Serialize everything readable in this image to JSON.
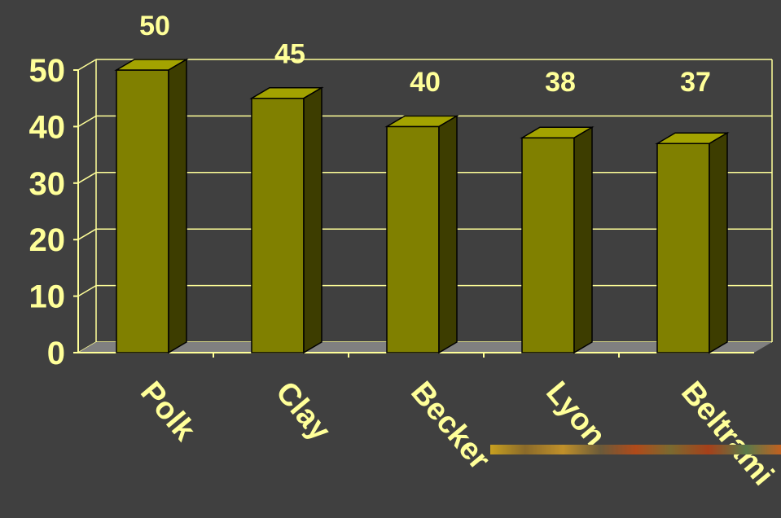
{
  "chart_data": {
    "type": "bar",
    "categories": [
      "Polk",
      "Clay",
      "Becker",
      "Lyon",
      "Beltrami"
    ],
    "values": [
      50,
      45,
      40,
      38,
      37
    ],
    "title": "",
    "xlabel": "",
    "ylabel": "",
    "ylim": [
      0,
      50
    ],
    "yticks": [
      0,
      10,
      20,
      30,
      40,
      50
    ],
    "grid": true,
    "legend": "none",
    "colors": {
      "background": "#404040",
      "bar_front": "#808000",
      "bar_top": "#A3A300",
      "bar_side": "#3D3D00",
      "floor": "#808080",
      "axis": "#FFFF99",
      "text": "#FFFF99",
      "grid": "#FFFF99"
    }
  },
  "decoration": {
    "name": "textured-divider-bar"
  }
}
